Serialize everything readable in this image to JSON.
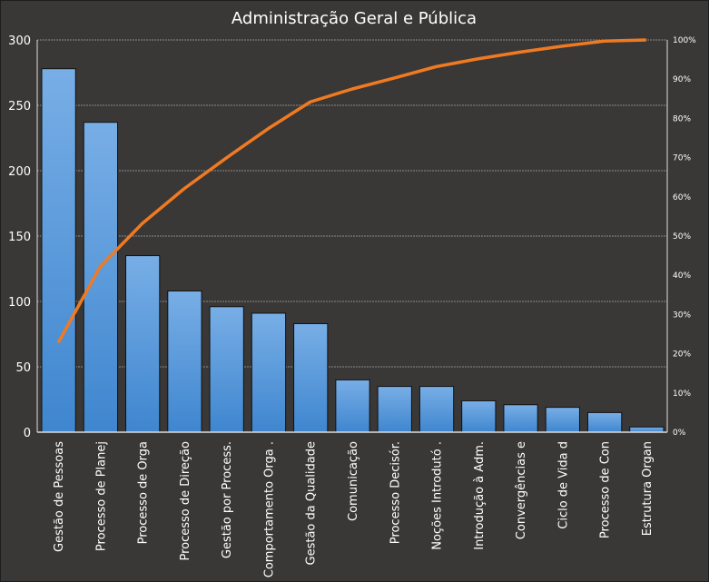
{
  "chart_data": {
    "type": "bar",
    "title": "Administração Geral e Pública",
    "categories": [
      "Gestão de Pessoas",
      "Processo de Planej",
      "Processo de Orga",
      "Processo de Direção",
      "Gestão por Process.",
      "Comportamento  Orga .",
      "Gestão da Qualidade",
      "Comunicação",
      "Processo Decisór.",
      "Noções Introdutó  .",
      "Introdução  à Adm.",
      "Convergências e",
      "Ciclo de Vida d",
      "Processo de Con",
      "Estrutura Organ"
    ],
    "values": [
      278,
      237,
      135,
      108,
      96,
      91,
      83,
      40,
      35,
      35,
      24,
      21,
      19,
      15,
      4
    ],
    "cumulative_percent": [
      22.8,
      42.2,
      53.2,
      62.1,
      69.9,
      77.4,
      84.2,
      87.5,
      90.3,
      93.2,
      95.2,
      96.9,
      98.4,
      99.7,
      100
    ],
    "ylim": [
      0,
      300
    ],
    "yticks": [
      "0",
      "50",
      "100",
      "150",
      "200",
      "250",
      "300"
    ],
    "y2lim": [
      0,
      100
    ],
    "y2ticks": [
      "0%",
      "10%",
      "20%",
      "30%",
      "40%",
      "50%",
      "60%",
      "70%",
      "80%",
      "90%",
      "100%"
    ],
    "grid": true,
    "xlabel": "",
    "ylabel": "",
    "colors": {
      "bar": "#4a90d6",
      "bar_top": "#78aee6",
      "line": "#f07a22",
      "grid": "#8a8a8a"
    }
  }
}
